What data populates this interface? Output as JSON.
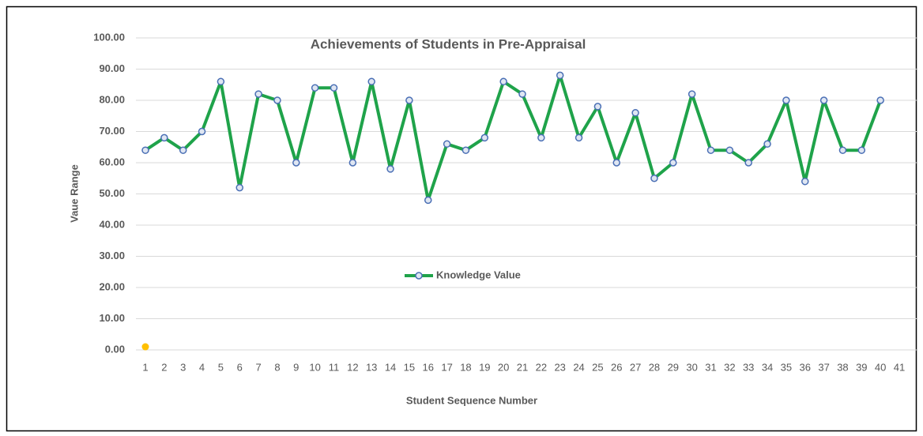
{
  "chart_data": {
    "type": "line",
    "title": "Achievements of Students in Pre-Appraisal",
    "xlabel": "Student Sequence Number",
    "ylabel": "Vaue Range",
    "categories": [
      "1",
      "2",
      "3",
      "4",
      "5",
      "6",
      "7",
      "8",
      "9",
      "10",
      "11",
      "12",
      "13",
      "14",
      "15",
      "16",
      "17",
      "18",
      "19",
      "20",
      "21",
      "22",
      "23",
      "24",
      "25",
      "26",
      "27",
      "28",
      "29",
      "30",
      "31",
      "32",
      "33",
      "34",
      "35",
      "36",
      "37",
      "38",
      "39",
      "40",
      "41"
    ],
    "series": [
      {
        "name": "Knowledge Value",
        "color": "#1fa34a",
        "marker_color": "#4a6fb5",
        "values": [
          64,
          68,
          64,
          70,
          86,
          52,
          82,
          80,
          60,
          84,
          84,
          60,
          86,
          58,
          80,
          48,
          66,
          64,
          68,
          86,
          82,
          68,
          88,
          68,
          78,
          60,
          76,
          55,
          60,
          82,
          64,
          64,
          60,
          66,
          80,
          54,
          80,
          64,
          64,
          80,
          null
        ]
      },
      {
        "color": "#ffc000",
        "values": [
          1,
          null,
          null,
          null,
          null,
          null,
          null,
          null,
          null,
          null,
          null,
          null,
          null,
          null,
          null,
          null,
          null,
          null,
          null,
          null,
          null,
          null,
          null,
          null,
          null,
          null,
          null,
          null,
          null,
          null,
          null,
          null,
          null,
          null,
          null,
          null,
          null,
          null,
          null,
          null,
          null
        ]
      }
    ],
    "ylim": [
      0,
      100
    ],
    "yticks": [
      {
        "value": 0,
        "label": "0.00"
      },
      {
        "value": 10,
        "label": "10.00"
      },
      {
        "value": 20,
        "label": "20.00"
      },
      {
        "value": 30,
        "label": "30.00"
      },
      {
        "value": 40,
        "label": "40.00"
      },
      {
        "value": 50,
        "label": "50.00"
      },
      {
        "value": 60,
        "label": "60.00"
      },
      {
        "value": 70,
        "label": "70.00"
      },
      {
        "value": 80,
        "label": "80.00"
      },
      {
        "value": 90,
        "label": "90.00"
      },
      {
        "value": 100,
        "label": "100.00"
      }
    ],
    "grid": true,
    "legend": "center"
  }
}
